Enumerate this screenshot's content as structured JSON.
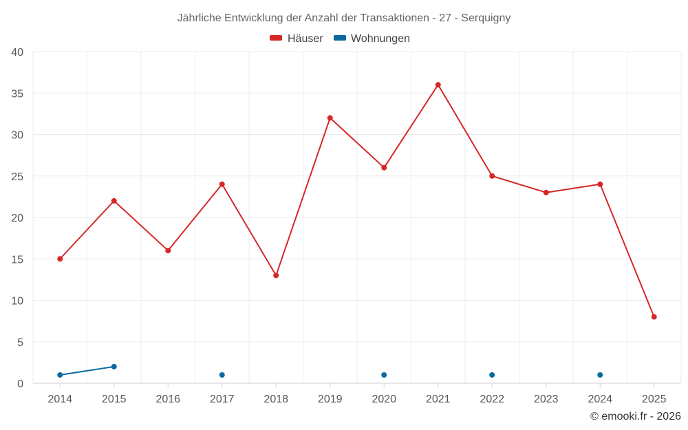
{
  "chart_data": {
    "type": "line",
    "title": "Jährliche Entwicklung der Anzahl der Transaktionen - 27 - Serquigny",
    "categories": [
      "2014",
      "2015",
      "2016",
      "2017",
      "2018",
      "2019",
      "2020",
      "2021",
      "2022",
      "2023",
      "2024",
      "2025"
    ],
    "series": [
      {
        "name": "Häuser",
        "color": "#d62728",
        "values": [
          15,
          22,
          16,
          24,
          13,
          32,
          26,
          36,
          25,
          23,
          24,
          8
        ]
      },
      {
        "name": "Wohnungen",
        "color": "#0b6aa2",
        "values": [
          1,
          2,
          null,
          1,
          null,
          null,
          1,
          null,
          1,
          null,
          1,
          null
        ]
      }
    ],
    "ylim": [
      0,
      40
    ],
    "yticks": [
      "0",
      "5",
      "10",
      "15",
      "20",
      "25",
      "30",
      "35",
      "40"
    ],
    "grid": true,
    "legend_position": "top-center",
    "credit": "© emooki.fr - 2026"
  }
}
